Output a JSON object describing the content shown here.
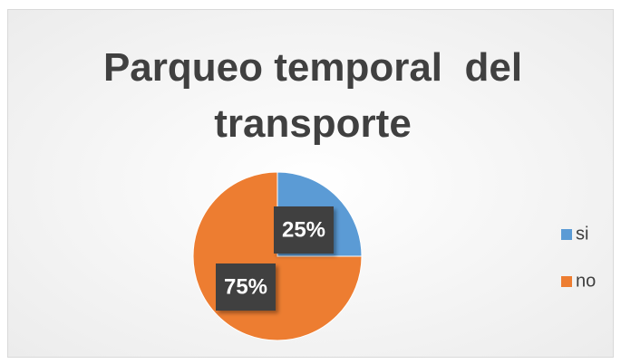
{
  "chart_data": {
    "type": "pie",
    "title": "Parqueo temporal  del transporte",
    "categories": [
      "si",
      "no"
    ],
    "values": [
      25,
      75
    ],
    "value_labels": [
      "25%",
      "75%"
    ],
    "colors": [
      "#5b9bd5",
      "#ed7d31"
    ],
    "legend": "right"
  }
}
